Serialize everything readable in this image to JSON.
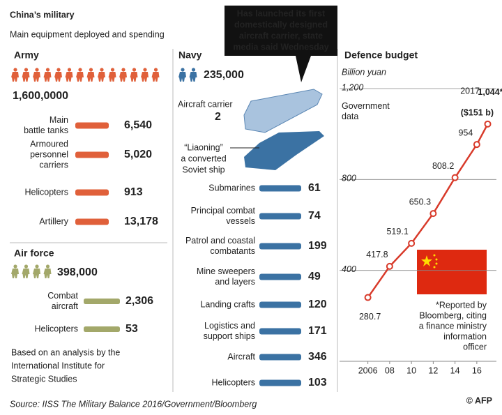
{
  "header": {
    "title": "China’s military",
    "subtitle": "Main equipment deployed and spending"
  },
  "callout": [
    "Has launched its first",
    "domestically designed",
    "aircraft carrier, state",
    "media said Wednesday"
  ],
  "army": {
    "heading": "Army",
    "personnel": "1,600,0000",
    "items": [
      {
        "label": [
          "Main",
          "battle tanks"
        ],
        "value": "6,540"
      },
      {
        "label": [
          "Armoured",
          "personnel",
          "carriers"
        ],
        "value": "5,020"
      },
      {
        "label": [
          "Helicopters"
        ],
        "value": "913"
      },
      {
        "label": [
          "Artillery"
        ],
        "value": "13,178"
      }
    ]
  },
  "air_force": {
    "heading": "Air force",
    "personnel": "398,000",
    "items": [
      {
        "label": [
          "Combat",
          "aircraft"
        ],
        "value": "2,306"
      },
      {
        "label": [
          "Helicopters"
        ],
        "value": "53"
      }
    ]
  },
  "note": [
    "Based on an analysis by the",
    "International Institute for",
    "Strategic Studies"
  ],
  "navy": {
    "heading": "Navy",
    "personnel": "235,000",
    "carrier": {
      "label": "Aircraft carrier",
      "value": "2"
    },
    "liaoning": [
      "“Liaoning”",
      "a converted",
      "Soviet ship"
    ],
    "items": [
      {
        "label": [
          "Submarines"
        ],
        "value": "61"
      },
      {
        "label": [
          "Principal combat",
          "vessels"
        ],
        "value": "74"
      },
      {
        "label": [
          "Patrol and coastal",
          "combatants"
        ],
        "value": "199"
      },
      {
        "label": [
          "Mine sweepers",
          "and layers"
        ],
        "value": "49"
      },
      {
        "label": [
          "Landing crafts"
        ],
        "value": "120"
      },
      {
        "label": [
          "Logistics and",
          "support ships"
        ],
        "value": "171"
      },
      {
        "label": [
          "Aircraft"
        ],
        "value": "346"
      },
      {
        "label": [
          "Helicopters"
        ],
        "value": "103"
      }
    ]
  },
  "chart_data": {
    "type": "line",
    "title": "Defence budget",
    "y_label": "Billion yuan",
    "x": [
      2006,
      2008,
      2010,
      2012,
      2014,
      2016,
      2017
    ],
    "values": [
      280.7,
      417.8,
      519.1,
      650.3,
      808.2,
      954,
      1044
    ],
    "value_labels": [
      "280.7",
      "417.8",
      "519.1",
      "650.3",
      "808.2",
      "954",
      "1,044*"
    ],
    "color": "#d83a2a",
    "xlim": [
      2003.4,
      2017.8
    ],
    "xticks": [
      2006,
      {
        "value": 2008,
        "label": "08"
      },
      {
        "value": 2010,
        "label": "10"
      },
      {
        "value": 2012,
        "label": "12"
      },
      {
        "value": 2014,
        "label": "14"
      },
      {
        "value": 2016,
        "label": "16"
      }
    ],
    "ylim": [
      0,
      1200
    ],
    "yticks": [
      400,
      800,
      {
        "value": 1200,
        "label": "1,200"
      }
    ],
    "grid": true,
    "annotations": {
      "source_label": [
        "Government",
        "data"
      ],
      "last_year": "2017",
      "dollars": "($151 b)",
      "footnote": [
        "*Reported by",
        "Bloomberg, citing",
        "a finance ministry",
        "information",
        "officer"
      ]
    }
  },
  "footer": {
    "source": "Source: IISS The Military Balance 2016/Government/Bloomberg",
    "credit": "© AFP"
  }
}
